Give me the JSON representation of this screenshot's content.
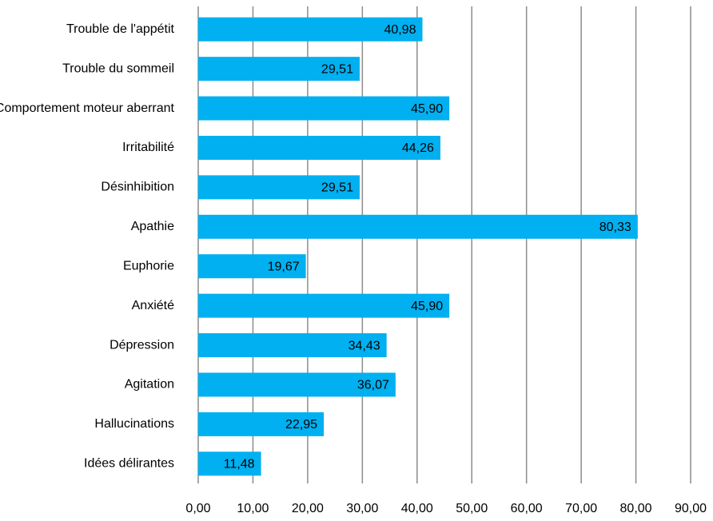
{
  "chart_data": {
    "type": "hbar",
    "categories": [
      "Trouble de l'appétit",
      "Trouble du sommeil",
      "Comportement moteur aberrant",
      "Irritabilité",
      "Désinhibition",
      "Apathie",
      "Euphorie",
      "Anxiété",
      "Dépression",
      "Agitation",
      "Hallucinations",
      "Idées délirantes"
    ],
    "values": [
      40.98,
      29.51,
      45.9,
      44.26,
      29.51,
      80.33,
      19.67,
      45.9,
      34.43,
      36.07,
      22.95,
      11.48
    ],
    "value_labels": [
      "40,98",
      "29,51",
      "45,90",
      "44,26",
      "29,51",
      "80,33",
      "19,67",
      "45,90",
      "34,43",
      "36,07",
      "22,95",
      "11,48"
    ],
    "color": "#00b0f0",
    "xlim": [
      0,
      90
    ],
    "xticks": [
      {
        "value": 0,
        "label": "0,00"
      },
      {
        "value": 10,
        "label": "10,00"
      },
      {
        "value": 20,
        "label": "20,00"
      },
      {
        "value": 30,
        "label": "30,00"
      },
      {
        "value": 40,
        "label": "40,00"
      },
      {
        "value": 50,
        "label": "50,00"
      },
      {
        "value": 60,
        "label": "60,00"
      },
      {
        "value": 70,
        "label": "70,00"
      },
      {
        "value": 80,
        "label": "80,00"
      },
      {
        "value": 90,
        "label": "90,00"
      }
    ],
    "grid": true
  }
}
